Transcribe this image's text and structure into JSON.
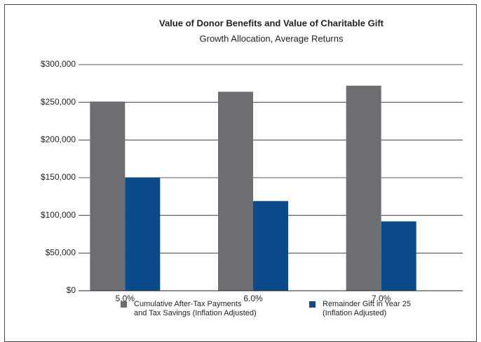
{
  "chart_data": {
    "type": "bar",
    "title": "Value of Donor Benefits and Value of Charitable Gift",
    "subtitle": "Growth Allocation, Average Returns",
    "categories": [
      "5.0%",
      "6.0%",
      "7.0%"
    ],
    "series": [
      {
        "name": "Cumulative After-Tax Payments\nand Tax Savings (Inflation Adjusted)",
        "color": "#6d6e71",
        "values": [
          251000,
          264000,
          272000
        ]
      },
      {
        "name": "Remainder Gift in Year 25\n(Inflation Adjusted)",
        "color": "#0b4a8b",
        "values": [
          150000,
          119000,
          92000
        ]
      }
    ],
    "ylim": [
      0,
      300000
    ],
    "yticks": [
      {
        "value": 0,
        "label": "$0"
      },
      {
        "value": 50000,
        "label": "$50,000"
      },
      {
        "value": 100000,
        "label": "$100,000"
      },
      {
        "value": 150000,
        "label": "$150,000"
      },
      {
        "value": 200000,
        "label": "$200,000"
      },
      {
        "value": 250000,
        "label": "$250,000"
      },
      {
        "value": 300000,
        "label": "$300,000"
      }
    ],
    "grid": true
  }
}
